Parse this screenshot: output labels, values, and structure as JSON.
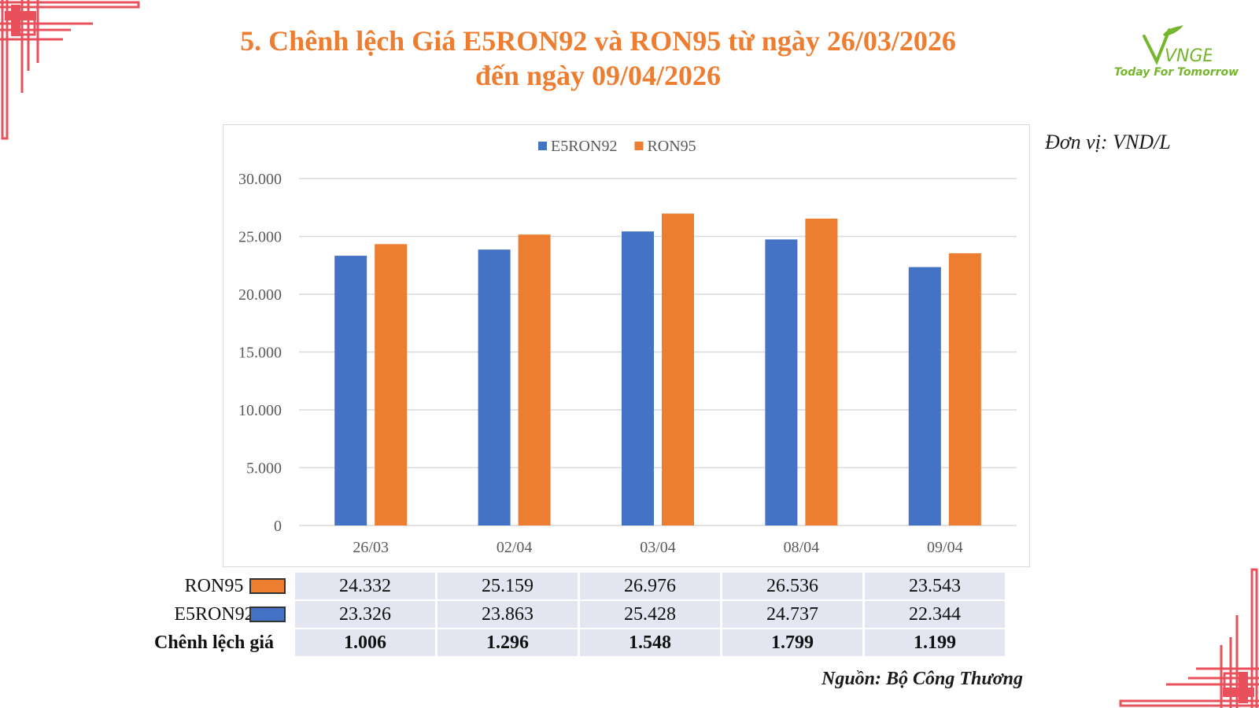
{
  "title_lines": [
    "5. Chênh lệch Giá E5RON92 và RON95 từ ngày 26/03/2026",
    "đến ngày 09/04/2026"
  ],
  "logo": {
    "brand": "VNGE",
    "tagline": "Today For Tomorrow",
    "icon": "vnge-leaf-logo"
  },
  "unit": "Đơn vị: VND/L",
  "source": "Nguồn: Bộ Công Thương",
  "colors": {
    "e5ron92": "#4472C4",
    "ron95": "#ED7D31",
    "title": "#ED7D31",
    "decor": "#E8505B"
  },
  "chart_data": {
    "type": "bar",
    "categories": [
      "26/03",
      "02/04",
      "03/04",
      "08/04",
      "09/04"
    ],
    "series": [
      {
        "name": "E5RON92",
        "color": "#4472C4",
        "values": [
          23326,
          23863,
          25428,
          24737,
          22344
        ]
      },
      {
        "name": "RON95",
        "color": "#ED7D31",
        "values": [
          24332,
          25159,
          26976,
          26536,
          23543
        ]
      }
    ],
    "ylim": [
      0,
      30000
    ],
    "yticks": [
      "0",
      "5.000",
      "10.000",
      "15.000",
      "20.000",
      "25.000",
      "30.000"
    ],
    "ytick_values": [
      0,
      5000,
      10000,
      15000,
      20000,
      25000,
      30000
    ],
    "grid": true,
    "legend": "top"
  },
  "table": {
    "rows": [
      {
        "label": "RON95",
        "swatch": "#ED7D31",
        "values": [
          "24.332",
          "25.159",
          "26.976",
          "26.536",
          "23.543"
        ]
      },
      {
        "label": "E5RON92",
        "swatch": "#4472C4",
        "values": [
          "23.326",
          "23.863",
          "25.428",
          "24.737",
          "22.344"
        ]
      },
      {
        "label": "Chênh lệch giá",
        "values": [
          "1.006",
          "1.296",
          "1.548",
          "1.799",
          "1.199"
        ]
      }
    ]
  }
}
